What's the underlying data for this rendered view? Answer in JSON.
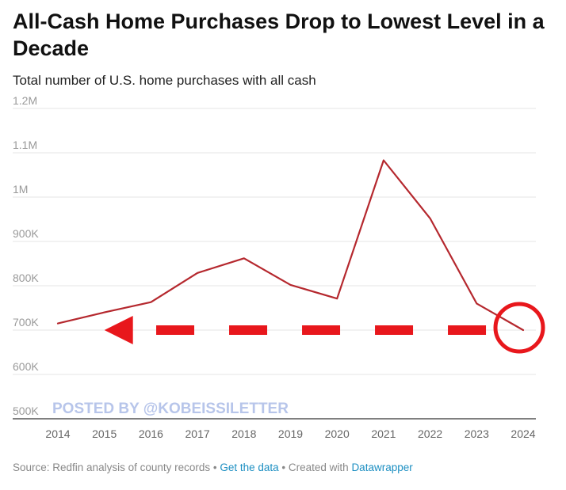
{
  "chart_data": {
    "type": "line",
    "title": "All-Cash Home Purchases Drop to Lowest Level in a Decade",
    "subtitle": "Total number of U.S. home purchases with all cash",
    "xlabel": "",
    "ylabel": "",
    "x": [
      2014,
      2015,
      2016,
      2017,
      2018,
      2019,
      2020,
      2021,
      2022,
      2023,
      2024
    ],
    "series": [
      {
        "name": "All-cash home purchases",
        "color": "#b5282e",
        "values": [
          715000,
          740000,
          763000,
          829000,
          862000,
          802000,
          771000,
          1083000,
          952000,
          760000,
          700000
        ]
      }
    ],
    "ylim": [
      500000,
      1200000
    ],
    "yticks": [
      {
        "value": 1200000,
        "label": "1.2M"
      },
      {
        "value": 1100000,
        "label": "1.1M"
      },
      {
        "value": 1000000,
        "label": "1M"
      },
      {
        "value": 900000,
        "label": "900K"
      },
      {
        "value": 800000,
        "label": "800K"
      },
      {
        "value": 700000,
        "label": "700K"
      },
      {
        "value": 600000,
        "label": "600K"
      },
      {
        "value": 500000,
        "label": "500K"
      }
    ],
    "xticks": [
      "2014",
      "2015",
      "2016",
      "2017",
      "2018",
      "2019",
      "2020",
      "2021",
      "2022",
      "2023",
      "2024"
    ],
    "grid": true,
    "annotations": {
      "arrow_level": 700000,
      "arrow_from_year": 2023.2,
      "arrow_to_year": 2015,
      "circle_year": 2024,
      "circle_value": 700000,
      "color": "#e8171c"
    },
    "watermark": "POSTED BY @KOBEISSILETTER"
  },
  "footer": {
    "source": "Source: Redfin analysis of county records",
    "sep1": " • ",
    "get_data": "Get the data",
    "sep2": " • Created with ",
    "datawrapper": "Datawrapper"
  },
  "colors": {
    "line": "#b5282e",
    "annotation": "#e8171c",
    "grid": "#e6e6e6",
    "axis": "#333333",
    "link": "#1d8fc2"
  }
}
